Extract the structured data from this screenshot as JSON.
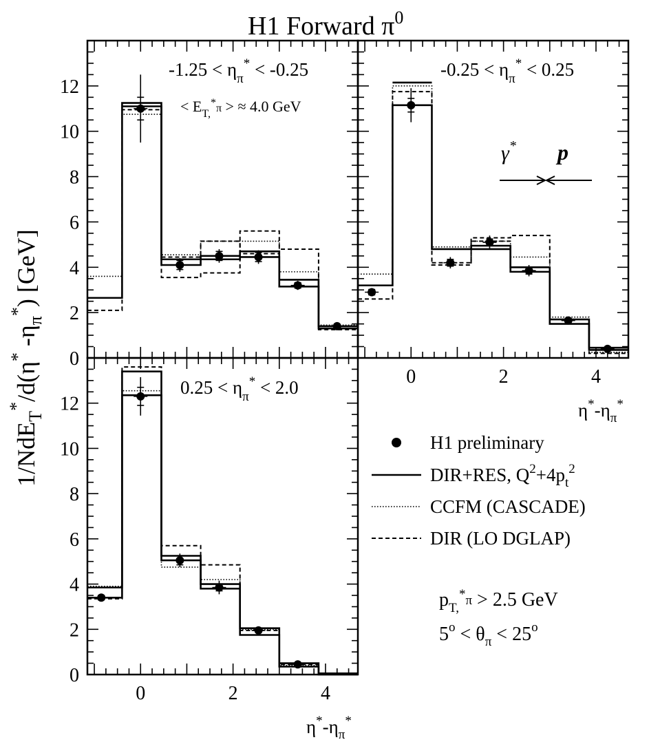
{
  "figure": {
    "title": "H1 Forward π",
    "title_sup": "0",
    "ylabel": "1/NdE*T/d(η*-η*π) [GeV]",
    "xlabel": "η*-η*π"
  },
  "legend": {
    "data_label": "H1 preliminary",
    "dir_res_label": "DIR+RES, Q²+4p²t",
    "ccfm_label": "CCFM (CASCADE)",
    "dir_label": "DIR (LO DGLAP)"
  },
  "cuts": {
    "pt_cut": "pT,*π > 2.5 GeV",
    "theta_cut": "5° < θπ < 25°"
  },
  "beam_arrows": {
    "photon": "γ*",
    "proton": "p"
  },
  "chart_data": [
    {
      "type": "histogram",
      "panel": "top-left",
      "range_label": "-1.25 < η*π < -0.25",
      "extra_label": "< ET,*π > ≈ 4.0 GeV",
      "x_edges": [
        -1.15,
        -0.4,
        0.45,
        1.3,
        2.15,
        3.0,
        3.85,
        4.7
      ],
      "xlim": [
        -1.15,
        4.7
      ],
      "ylim": [
        0,
        14
      ],
      "yticks": [
        0,
        2,
        4,
        6,
        8,
        10,
        12
      ],
      "xticks": [],
      "data": {
        "name": "H1 preliminary",
        "x": [
          -0.85,
          0.0,
          0.85,
          1.7,
          2.55,
          3.4,
          4.25
        ],
        "y": [
          null,
          11.0,
          4.1,
          4.5,
          4.45,
          3.2,
          1.4
        ],
        "err_stat": [
          null,
          0.5,
          0.2,
          0.2,
          0.2,
          0.12,
          0.05
        ],
        "err_tot": [
          null,
          1.5,
          0.3,
          0.3,
          0.3,
          0.2,
          0.08
        ]
      },
      "series": [
        {
          "name": "DIR+RES, Q²+4p²t",
          "style": "solid",
          "values": [
            2.65,
            11.25,
            4.35,
            4.5,
            4.7,
            3.45,
            1.4
          ],
          "band": [
            null,
            11.1,
            4.1,
            4.35,
            4.45,
            3.15,
            1.3
          ]
        },
        {
          "name": "CCFM (CASCADE)",
          "style": "dotted",
          "values": [
            3.6,
            10.75,
            4.55,
            5.15,
            5.15,
            3.8,
            1.45
          ]
        },
        {
          "name": "DIR (LO DGLAP)",
          "style": "dashed",
          "values": [
            2.1,
            10.95,
            3.55,
            3.75,
            5.6,
            4.8,
            1.25
          ],
          "band": [
            null,
            null,
            4.45,
            5.15,
            4.6,
            3.45,
            1.4
          ]
        }
      ]
    },
    {
      "type": "histogram",
      "panel": "top-right",
      "range_label": "-0.25 < η*π < 0.25",
      "extra_label": "",
      "x_edges": [
        -1.15,
        -0.4,
        0.45,
        1.3,
        2.15,
        3.0,
        3.85,
        4.7
      ],
      "xlim": [
        -1.15,
        4.7
      ],
      "ylim": [
        0,
        14
      ],
      "yticks": [],
      "xticks": [
        0,
        2,
        4
      ],
      "data": {
        "name": "H1 preliminary",
        "x": [
          -0.85,
          0.0,
          0.85,
          1.7,
          2.55,
          3.4,
          4.25
        ],
        "y": [
          2.9,
          11.15,
          4.2,
          5.1,
          3.85,
          1.65,
          0.4
        ],
        "err_stat": [
          0.12,
          0.3,
          0.15,
          0.15,
          0.15,
          0.08,
          0.03
        ],
        "err_tot": [
          0.18,
          0.75,
          0.25,
          0.3,
          0.25,
          0.12,
          0.05
        ]
      },
      "series": [
        {
          "name": "DIR+RES, Q²+4p²t",
          "style": "solid",
          "values": [
            3.2,
            11.15,
            4.8,
            4.95,
            4.0,
            1.5,
            0.35
          ],
          "band": [
            null,
            12.15,
            null,
            4.8,
            3.8,
            1.7,
            0.45
          ]
        },
        {
          "name": "CCFM (CASCADE)",
          "style": "dotted",
          "values": [
            3.7,
            12.0,
            4.9,
            5.15,
            4.45,
            1.8,
            0.25
          ]
        },
        {
          "name": "DIR (LO DGLAP)",
          "style": "dashed",
          "values": [
            2.6,
            11.75,
            4.1,
            5.3,
            5.4,
            1.7,
            0.2
          ],
          "band": [
            null,
            null,
            4.2,
            5.15,
            null,
            null,
            null
          ]
        }
      ]
    },
    {
      "type": "histogram",
      "panel": "bottom-left",
      "range_label": "0.25 < η*π < 2.0",
      "extra_label": "",
      "x_edges": [
        -1.15,
        -0.4,
        0.45,
        1.3,
        2.15,
        3.0,
        3.85,
        4.7
      ],
      "xlim": [
        -1.15,
        4.7
      ],
      "ylim": [
        0,
        14
      ],
      "yticks": [
        0,
        2,
        4,
        6,
        8,
        10,
        12
      ],
      "xticks": [
        0,
        2,
        4
      ],
      "data": {
        "name": "H1 preliminary",
        "x": [
          -0.85,
          0.0,
          0.85,
          1.7,
          2.55,
          3.4,
          4.25
        ],
        "y": [
          3.4,
          12.3,
          5.05,
          3.85,
          1.95,
          0.45,
          null
        ],
        "err_stat": [
          0.1,
          0.4,
          0.2,
          0.15,
          0.08,
          0.03,
          null
        ],
        "err_tot": [
          0.15,
          0.85,
          0.3,
          0.3,
          0.12,
          0.05,
          null
        ]
      },
      "series": [
        {
          "name": "DIR+RES, Q²+4p²t",
          "style": "solid",
          "values": [
            3.85,
            12.35,
            5.25,
            4.0,
            1.75,
            0.35,
            0.05
          ],
          "band": [
            3.4,
            13.4,
            5.05,
            3.8,
            2.05,
            0.5,
            0.0
          ]
        },
        {
          "name": "CCFM (CASCADE)",
          "style": "dotted",
          "values": [
            3.9,
            12.55,
            4.75,
            4.2,
            2.0,
            0.4,
            0.05
          ]
        },
        {
          "name": "DIR (LO DGLAP)",
          "style": "dashed",
          "values": [
            3.35,
            13.6,
            5.7,
            4.85,
            1.95,
            0.45,
            0.05
          ]
        }
      ]
    }
  ]
}
